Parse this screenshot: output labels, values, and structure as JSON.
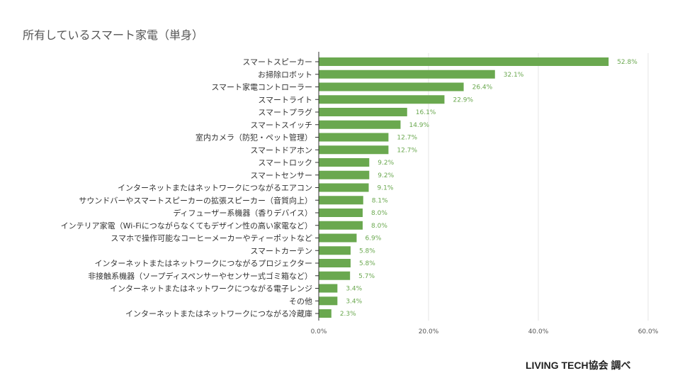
{
  "chart_data": {
    "type": "bar",
    "orientation": "horizontal",
    "title": "所有しているスマート家電（単身）",
    "xlabel": "",
    "ylabel": "",
    "xlim": [
      0,
      60
    ],
    "xticks": [
      "0.0%",
      "20.0%",
      "40.0%",
      "60.0%"
    ],
    "xtick_values": [
      0,
      20,
      40,
      60
    ],
    "grid": true,
    "bar_color": "#6aa84f",
    "categories": [
      "スマートスピーカー",
      "お掃除ロボット",
      "スマート家電コントローラー",
      "スマートライト",
      "スマートプラグ",
      "スマートスイッチ",
      "室内カメラ（防犯・ペット管理）",
      "スマートドアホン",
      "スマートロック",
      "スマートセンサー",
      "インターネットまたはネットワークにつながるエアコン",
      "サウンドバーやスマートスピーカーの拡張スピーカー（音質向上）",
      "ディフューザー系機器（香りデバイス）",
      "インテリア家電（Wi-Fiにつながらなくてもデザイン性の高い家電など）",
      "スマホで操作可能なコーヒーメーカーやティーポットなど",
      "スマートカーテン",
      "インターネットまたはネットワークにつながるプロジェクター",
      "非接触系機器（ソープディスペンサーやセンサー式ゴミ箱など）",
      "インターネットまたはネットワークにつながる電子レンジ",
      "その他",
      "インターネットまたはネットワークにつながる冷蔵庫"
    ],
    "values": [
      52.8,
      32.1,
      26.4,
      22.9,
      16.1,
      14.9,
      12.7,
      12.7,
      9.2,
      9.2,
      9.1,
      8.1,
      8.0,
      8.0,
      6.9,
      5.8,
      5.8,
      5.7,
      3.4,
      3.4,
      2.3
    ],
    "value_labels": [
      "52.8%",
      "32.1%",
      "26.4%",
      "22.9%",
      "16.1%",
      "14.9%",
      "12.7%",
      "12.7%",
      "9.2%",
      "9.2%",
      "9.1%",
      "8.1%",
      "8.0%",
      "8.0%",
      "6.9%",
      "5.8%",
      "5.8%",
      "5.7%",
      "3.4%",
      "3.4%",
      "2.3%"
    ]
  },
  "footer": "LIVING TECH協会 調べ"
}
